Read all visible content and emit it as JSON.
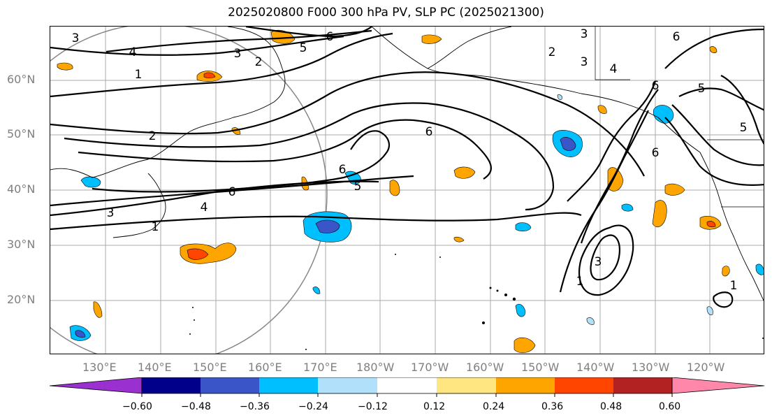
{
  "title": "2025020800 F000 300 hPa PV, SLP PC (2025021300)",
  "lat_labels": [
    "60°N",
    "50°N",
    "40°N",
    "30°N",
    "20°N"
  ],
  "lon_labels": [
    "130°E",
    "140°E",
    "150°E",
    "160°E",
    "170°E",
    "180°W",
    "170°W",
    "160°W",
    "150°W",
    "140°W",
    "130°W",
    "120°W"
  ],
  "colorbar": {
    "ticks": [
      "−0.60",
      "−0.48",
      "−0.36",
      "−0.24",
      "−0.12",
      "0.12",
      "0.24",
      "0.36",
      "0.48",
      "0.60"
    ],
    "colors": [
      "#9b30d0",
      "#00008b",
      "#3a55c8",
      "#00bfff",
      "#b0e0fa",
      "#ffffff",
      "#ffe680",
      "#ffa500",
      "#ff4500",
      "#b22222",
      "#ff88aa"
    ]
  },
  "contour_labels": [
    "3",
    "4",
    "1",
    "5",
    "6",
    "3",
    "2",
    "2",
    "6",
    "6",
    "4",
    "3",
    "1",
    "5",
    "6",
    "3",
    "6",
    "3",
    "2",
    "4",
    "6",
    "5",
    "5",
    "6",
    "3",
    "1",
    "1"
  ]
}
